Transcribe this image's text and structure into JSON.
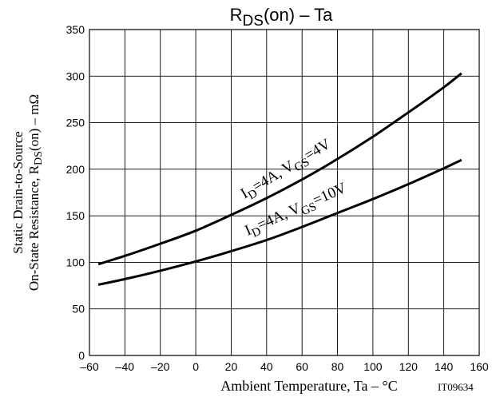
{
  "chart_data": {
    "type": "line",
    "title_main": "R",
    "title_sub": "DS",
    "title_rest": "(on)  –  Ta",
    "xlabel": "Ambient Temperature, Ta  –  °C",
    "ylabel_line1": "Static Drain-to-Source",
    "ylabel_line2_pre": "On-State Resistance, R",
    "ylabel_line2_sub": "DS",
    "ylabel_line2_post": "(on)  –  mΩ",
    "figure_id": "IT09634",
    "xlim": [
      -60,
      160
    ],
    "ylim": [
      0,
      350
    ],
    "x_ticks": [
      "–60",
      "–40",
      "–20",
      "0",
      "20",
      "40",
      "60",
      "80",
      "100",
      "120",
      "140",
      "160"
    ],
    "y_ticks": [
      "0",
      "50",
      "100",
      "150",
      "200",
      "250",
      "300",
      "350"
    ],
    "grid": true,
    "series": [
      {
        "label_parts": [
          "I",
          "D",
          "=4A, V",
          "GS",
          "=4V"
        ],
        "color": "#000000",
        "x": [
          -55,
          -40,
          -20,
          0,
          20,
          40,
          60,
          80,
          100,
          120,
          140,
          150
        ],
        "y": [
          98,
          107,
          120,
          134,
          151,
          169,
          189,
          211,
          235,
          261,
          288,
          303
        ]
      },
      {
        "label_parts": [
          "I",
          "D",
          "=4A, V",
          "GS",
          "=10V"
        ],
        "color": "#000000",
        "x": [
          -55,
          -40,
          -20,
          0,
          20,
          40,
          60,
          80,
          100,
          120,
          140,
          150
        ],
        "y": [
          76,
          82,
          91,
          101,
          112,
          124,
          138,
          153,
          168,
          184,
          201,
          210
        ]
      }
    ]
  }
}
